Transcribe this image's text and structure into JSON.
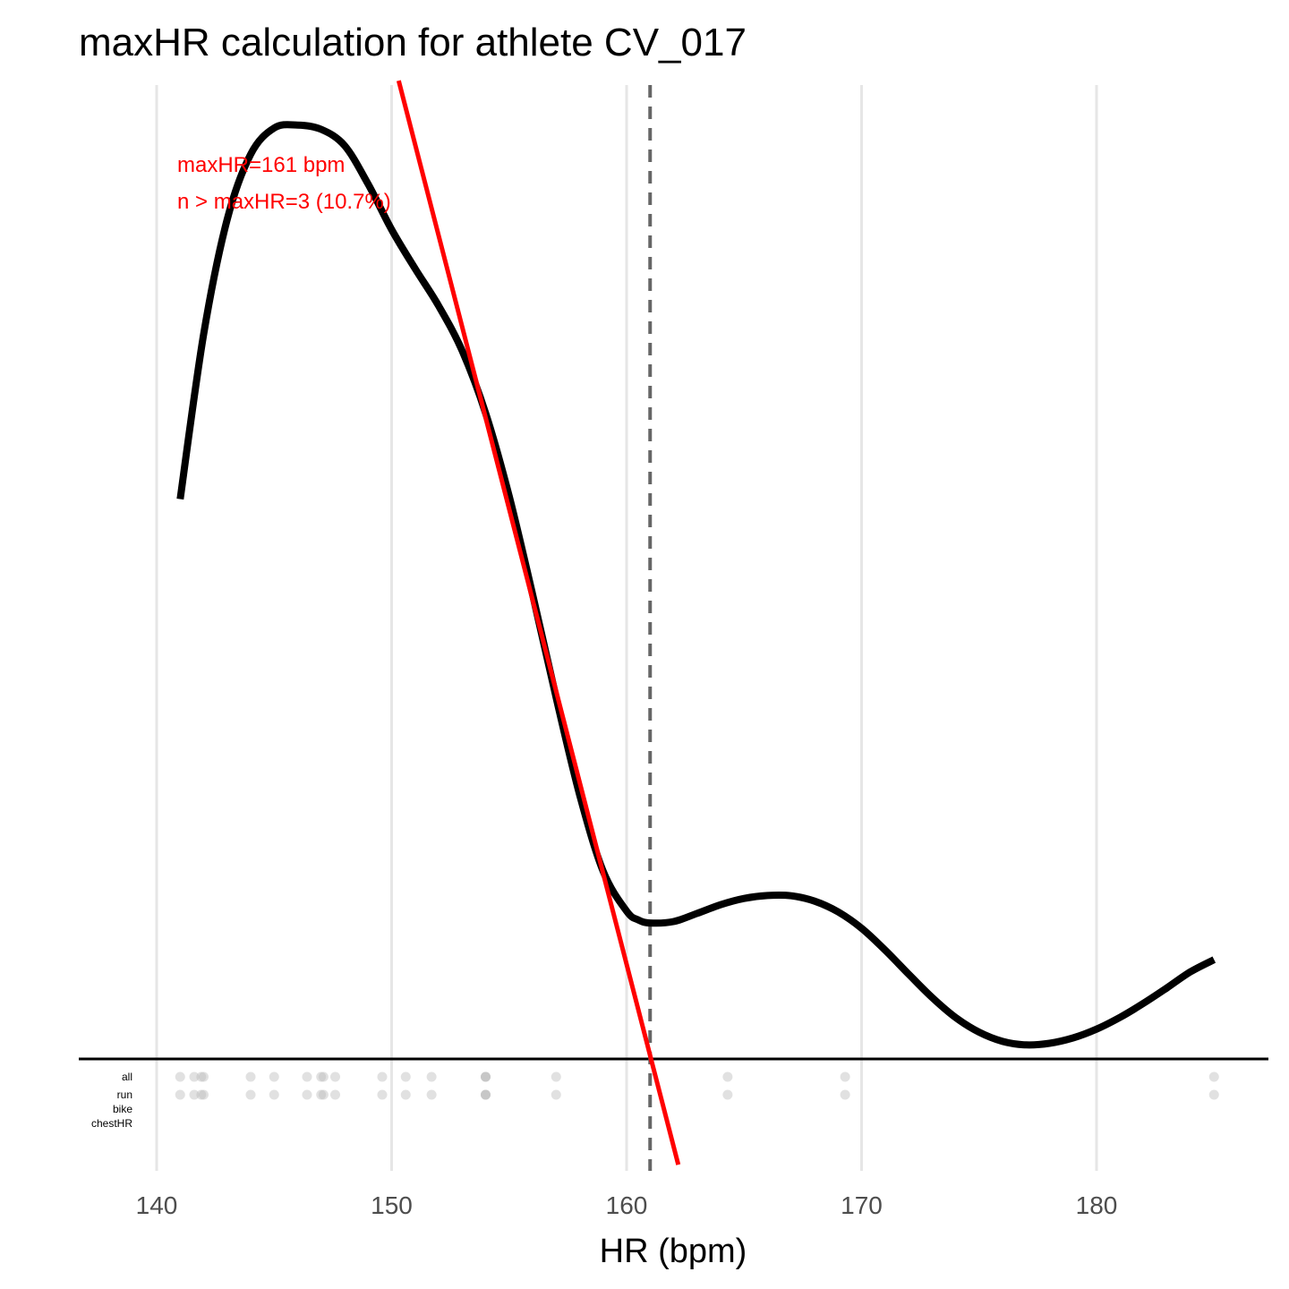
{
  "chart_data": {
    "type": "line",
    "title": "maxHR calculation for athlete CV_017",
    "xlabel": "HR (bpm)",
    "ylabel": "",
    "xlim": [
      136.7,
      187.3
    ],
    "x_ticks": [
      140,
      150,
      160,
      170,
      180
    ],
    "grid": "vertical major gridlines",
    "density_curve": {
      "x": [
        141,
        142,
        143,
        144,
        145,
        146,
        147,
        148,
        149,
        150,
        151,
        152,
        153,
        154,
        155,
        156,
        157,
        158,
        159,
        160,
        160.5,
        161,
        162,
        163,
        164,
        165,
        166,
        167,
        168,
        169,
        170,
        171,
        172,
        173,
        174,
        175,
        176,
        177,
        178,
        179,
        180,
        181,
        182,
        183,
        184,
        185
      ],
      "y": [
        0.6254,
        0.8097,
        0.9378,
        1.0106,
        1.04,
        1.0433,
        1.0385,
        1.0203,
        0.9773,
        0.9265,
        0.8828,
        0.8413,
        0.7912,
        0.7214,
        0.6289,
        0.5189,
        0.4037,
        0.2952,
        0.2097,
        0.1652,
        0.1553,
        0.1519,
        0.1535,
        0.1626,
        0.1723,
        0.1793,
        0.1826,
        0.1823,
        0.1763,
        0.1643,
        0.146,
        0.1216,
        0.0948,
        0.0687,
        0.0463,
        0.0299,
        0.0196,
        0.0157,
        0.0175,
        0.0235,
        0.0333,
        0.0465,
        0.0622,
        0.0795,
        0.0974,
        0.1109
      ]
    },
    "tangent_line": {
      "x": [
        150.3,
        162.2
      ],
      "y": [
        1.0929,
        -0.1181
      ]
    },
    "maxHR_marker_x": 161,
    "annotations": [
      "maxHR=161 bpm",
      "n > maxHR=3 (10.7%)"
    ],
    "rug_rows": [
      "all",
      "run",
      "bike",
      "chestHR"
    ],
    "rug_points": {
      "all": [
        141,
        141.6,
        141.9,
        142,
        144,
        145,
        146.4,
        147,
        147.1,
        147.6,
        149.6,
        150.6,
        151.7,
        154,
        154,
        154,
        157,
        164.3,
        169.3,
        185
      ],
      "run": [
        141,
        141.6,
        141.9,
        142,
        144,
        145,
        146.4,
        147,
        147.1,
        147.6,
        149.6,
        150.6,
        151.7,
        154,
        154,
        154,
        157,
        164.3,
        169.3,
        185
      ],
      "bike": [],
      "chestHR": []
    },
    "colors": {
      "density": "#000000",
      "tangent": "#ff0000",
      "marker": "#666666",
      "gridline": "#e6e6e6",
      "rug": "#bdbdbd",
      "annotation": "#ff0000"
    }
  }
}
